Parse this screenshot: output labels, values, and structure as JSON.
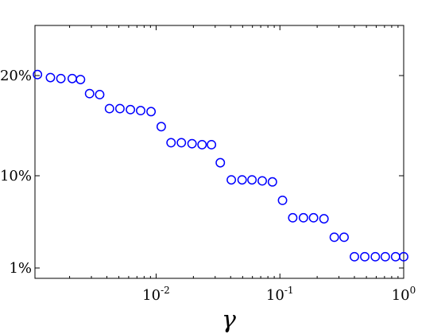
{
  "chart_data": {
    "type": "scatter",
    "title": "",
    "xlabel": "γ",
    "ylabel": "",
    "xscale": "log",
    "xlim": [
      0.00105,
      1.0
    ],
    "y_axis_note": "categorical-percent levels",
    "y_ticks": [
      {
        "label": "1%",
        "value": 1.0
      },
      {
        "label": "10%",
        "value": 10.0
      },
      {
        "label": "20%",
        "value": 20.0
      }
    ],
    "x_ticks": [
      {
        "base": "10",
        "exp": "-2",
        "value": 0.01
      },
      {
        "base": "10",
        "exp": "-1",
        "value": 0.1
      },
      {
        "base": "10",
        "exp": "0",
        "value": 1.0
      }
    ],
    "marker": {
      "shape": "open-circle",
      "color": "#0000ff"
    },
    "series": [
      {
        "points": [
          {
            "x": 0.0011,
            "y": 20.1
          },
          {
            "x": 0.0014,
            "y": 19.8
          },
          {
            "x": 0.0017,
            "y": 19.7
          },
          {
            "x": 0.0021,
            "y": 19.7
          },
          {
            "x": 0.00245,
            "y": 19.6
          },
          {
            "x": 0.0029,
            "y": 18.2
          },
          {
            "x": 0.0035,
            "y": 18.1
          },
          {
            "x": 0.0042,
            "y": 16.7
          },
          {
            "x": 0.0051,
            "y": 16.7
          },
          {
            "x": 0.0062,
            "y": 16.6
          },
          {
            "x": 0.0075,
            "y": 16.5
          },
          {
            "x": 0.0091,
            "y": 16.4
          },
          {
            "x": 0.011,
            "y": 14.9
          },
          {
            "x": 0.0132,
            "y": 13.3
          },
          {
            "x": 0.016,
            "y": 13.3
          },
          {
            "x": 0.0195,
            "y": 13.2
          },
          {
            "x": 0.0235,
            "y": 13.1
          },
          {
            "x": 0.028,
            "y": 13.1
          },
          {
            "x": 0.033,
            "y": 11.3
          },
          {
            "x": 0.0405,
            "y": 9.6
          },
          {
            "x": 0.0495,
            "y": 9.6
          },
          {
            "x": 0.0595,
            "y": 9.6
          },
          {
            "x": 0.072,
            "y": 9.5
          },
          {
            "x": 0.087,
            "y": 9.4
          },
          {
            "x": 0.105,
            "y": 7.6
          },
          {
            "x": 0.127,
            "y": 5.9
          },
          {
            "x": 0.155,
            "y": 5.9
          },
          {
            "x": 0.187,
            "y": 5.9
          },
          {
            "x": 0.227,
            "y": 5.8
          },
          {
            "x": 0.275,
            "y": 4.0
          },
          {
            "x": 0.33,
            "y": 4.0
          },
          {
            "x": 0.4,
            "y": 2.1
          },
          {
            "x": 0.485,
            "y": 2.1
          },
          {
            "x": 0.59,
            "y": 2.1
          },
          {
            "x": 0.71,
            "y": 2.1
          },
          {
            "x": 0.86,
            "y": 2.1
          },
          {
            "x": 1.0,
            "y": 2.1
          }
        ]
      }
    ]
  }
}
